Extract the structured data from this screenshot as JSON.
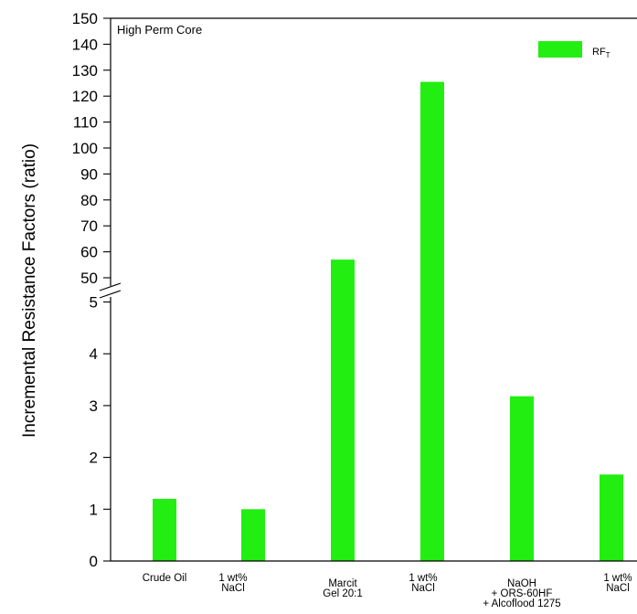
{
  "chart_data": {
    "type": "bar",
    "panel_label": "High Perm Core",
    "ylabel": "Incremental Resistance Factors (ratio)",
    "xlabel": "",
    "axis_break": {
      "lower_range": [
        0,
        5
      ],
      "upper_range": [
        50,
        150
      ]
    },
    "yticks_lower": [
      "0",
      "1",
      "2",
      "3",
      "4",
      "5"
    ],
    "yticks_upper": [
      "50",
      "60",
      "70",
      "80",
      "90",
      "100",
      "110",
      "120",
      "130",
      "140",
      "150"
    ],
    "categories": [
      [
        "Crude Oil"
      ],
      [
        "1 wt%",
        "NaCl"
      ],
      [
        "Marcit",
        "Gel 20:1"
      ],
      [
        "1 wt%",
        "NaCl"
      ],
      [
        "NaOH",
        "+ ORS-60HF",
        "+ Alcoflood 1275"
      ],
      [
        "1 wt%",
        "NaCl"
      ]
    ],
    "series": [
      {
        "name": "RF",
        "name_subscript": "T",
        "color": "#22ee11",
        "values": [
          1.2,
          1.0,
          57,
          125.5,
          3.18,
          1.67
        ]
      }
    ],
    "legend_position": "top-right",
    "grid": false
  }
}
